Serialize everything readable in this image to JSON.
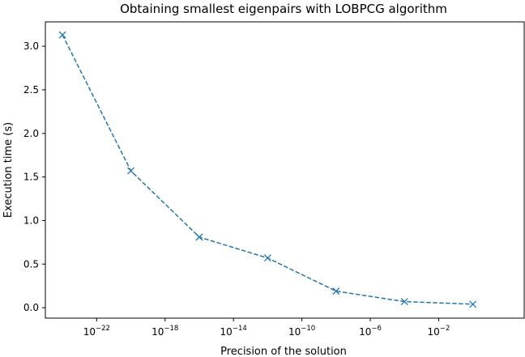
{
  "chart_data": {
    "type": "line",
    "title": "Obtaining smallest eigenpairs with LOBPCG algorithm",
    "xlabel": "Precision of the solution",
    "ylabel": "Execution time (s)",
    "x_scale": "log",
    "xlim": [
      1e-25,
      1000.0
    ],
    "ylim": [
      -0.12,
      3.28
    ],
    "x_ticks": [
      {
        "value": 1e-22,
        "base": "10",
        "exp": "−22"
      },
      {
        "value": 1e-18,
        "base": "10",
        "exp": "−18"
      },
      {
        "value": 1e-14,
        "base": "10",
        "exp": "−14"
      },
      {
        "value": 1e-10,
        "base": "10",
        "exp": "−10"
      },
      {
        "value": 1e-06,
        "base": "10",
        "exp": "−6"
      },
      {
        "value": 0.01,
        "base": "10",
        "exp": "−2"
      }
    ],
    "y_ticks": [
      {
        "value": 0.0,
        "label": "0.0"
      },
      {
        "value": 0.5,
        "label": "0.5"
      },
      {
        "value": 1.0,
        "label": "1.0"
      },
      {
        "value": 1.5,
        "label": "1.5"
      },
      {
        "value": 2.0,
        "label": "2.0"
      },
      {
        "value": 2.5,
        "label": "2.5"
      },
      {
        "value": 3.0,
        "label": "3.0"
      }
    ],
    "series": [
      {
        "color": "#1f77b4",
        "line_style": "dashed",
        "marker": "x",
        "x": [
          1e-24,
          1e-20,
          1e-16,
          1e-12,
          1e-08,
          0.0001,
          1
        ],
        "y": [
          3.13,
          1.57,
          0.81,
          0.57,
          0.19,
          0.07,
          0.04
        ]
      }
    ],
    "grid": false,
    "legend": "none"
  }
}
